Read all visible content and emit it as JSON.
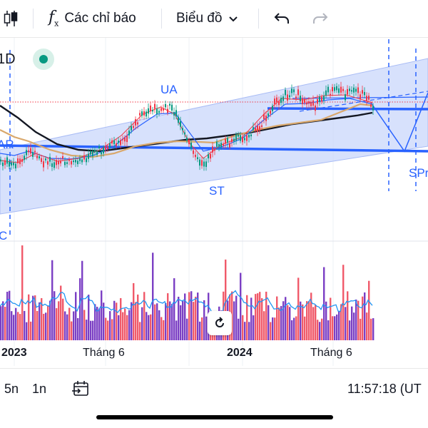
{
  "toolbar": {
    "indicators_label": "Các chỉ báo",
    "chart_type_label": "Biểu đồ",
    "candles_icon": "candlestick-icon",
    "fx_icon": "function-icon",
    "undo_icon": "undo-icon",
    "redo_icon": "redo-icon"
  },
  "chart": {
    "interval": "1D",
    "annotations": {
      "ua": "UA",
      "st": "ST",
      "ar": "AR",
      "spr": "SPr",
      "sc": "C"
    },
    "x_labels": {
      "y2023": "2023",
      "jun1": "Tháng 6",
      "y2024": "2024",
      "jun2": "Tháng 6"
    },
    "colors": {
      "channel_fill": "#c9d7fb",
      "channel_line": "#2962ff",
      "up": "#089981",
      "down": "#f23645",
      "ma_black": "#131722",
      "ma_tan": "#d9a86c",
      "vol_up": "#7b3fc4",
      "vol_down": "#f05a6a"
    }
  },
  "bottom": {
    "range_5y": "5n",
    "range_1y": "1n",
    "time": "11:57:18 (UT"
  }
}
